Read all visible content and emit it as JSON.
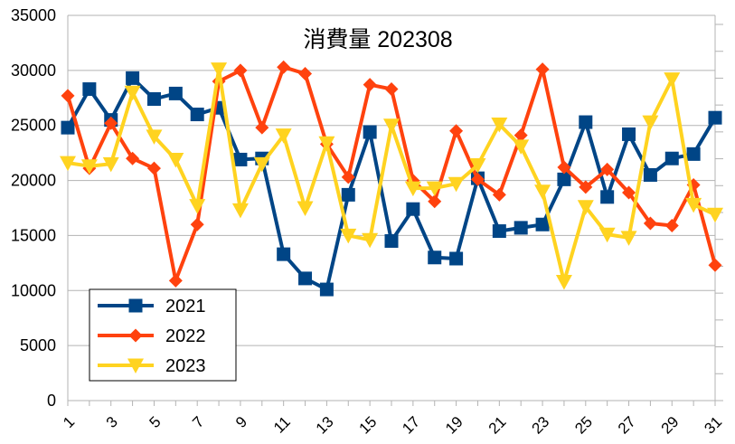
{
  "chart_data": {
    "type": "line",
    "title": "消費量 202308",
    "xlabel": "",
    "ylabel": "",
    "ylim": [
      0,
      35000
    ],
    "y_ticks": [
      0,
      5000,
      10000,
      15000,
      20000,
      25000,
      30000,
      35000
    ],
    "grid": "horizontal",
    "legend_position": "bottom-left",
    "categories": [
      1,
      2,
      3,
      4,
      5,
      6,
      7,
      8,
      9,
      10,
      11,
      12,
      13,
      14,
      15,
      16,
      17,
      18,
      19,
      20,
      21,
      22,
      23,
      24,
      25,
      26,
      27,
      28,
      29,
      30,
      31
    ],
    "x_tick_labels": [
      "1",
      "3",
      "5",
      "7",
      "9",
      "11",
      "13",
      "15",
      "17",
      "19",
      "21",
      "23",
      "25",
      "27",
      "29",
      "31"
    ],
    "series": [
      {
        "name": "2021",
        "color": "#004586",
        "marker": "square",
        "values": [
          24800,
          28300,
          25500,
          29300,
          27400,
          27900,
          26000,
          26600,
          21900,
          22000,
          13300,
          11100,
          10100,
          18700,
          24400,
          14500,
          17400,
          13000,
          12900,
          20200,
          15400,
          15700,
          16000,
          20100,
          25300,
          18500,
          24200,
          20500,
          22000,
          22400,
          25700
        ]
      },
      {
        "name": "2022",
        "color": "#ff420e",
        "marker": "diamond",
        "values": [
          27700,
          21100,
          25200,
          22000,
          21100,
          10900,
          16000,
          29000,
          30000,
          24800,
          30300,
          29700,
          23300,
          20300,
          28700,
          28300,
          20000,
          18100,
          24500,
          20100,
          18700,
          24100,
          30100,
          21200,
          19400,
          21000,
          18900,
          16100,
          15900,
          19600,
          12300
        ]
      },
      {
        "name": "2023",
        "color": "#ffd320",
        "marker": "triangle-down",
        "values": [
          21600,
          21300,
          21500,
          28000,
          24000,
          21900,
          17700,
          30100,
          17300,
          21500,
          24100,
          17500,
          23400,
          15000,
          14600,
          25000,
          19300,
          19300,
          19700,
          21400,
          25100,
          23100,
          19000,
          10800,
          17600,
          15100,
          14800,
          25300,
          29200,
          17800,
          16900
        ]
      }
    ]
  }
}
